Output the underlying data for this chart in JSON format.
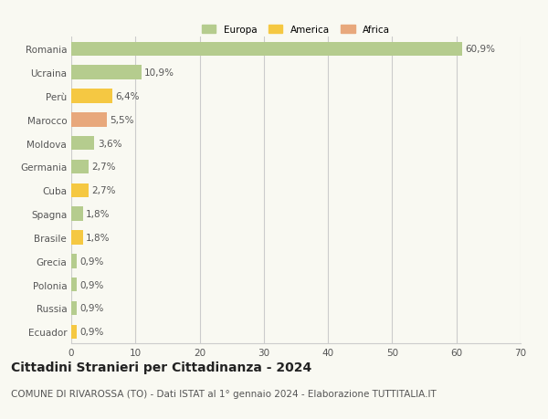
{
  "categories": [
    "Romania",
    "Ucraina",
    "Perù",
    "Marocco",
    "Moldova",
    "Germania",
    "Cuba",
    "Spagna",
    "Brasile",
    "Grecia",
    "Polonia",
    "Russia",
    "Ecuador"
  ],
  "values": [
    60.9,
    10.9,
    6.4,
    5.5,
    3.6,
    2.7,
    2.7,
    1.8,
    1.8,
    0.9,
    0.9,
    0.9,
    0.9
  ],
  "labels": [
    "60,9%",
    "10,9%",
    "6,4%",
    "5,5%",
    "3,6%",
    "2,7%",
    "2,7%",
    "1,8%",
    "1,8%",
    "0,9%",
    "0,9%",
    "0,9%",
    "0,9%"
  ],
  "continents": [
    "Europa",
    "Europa",
    "America",
    "Africa",
    "Europa",
    "Europa",
    "America",
    "Europa",
    "America",
    "Europa",
    "Europa",
    "Europa",
    "America"
  ],
  "colors": {
    "Europa": "#b5cc8e",
    "America": "#f5c842",
    "Africa": "#e8a87c"
  },
  "legend_labels": [
    "Europa",
    "America",
    "Africa"
  ],
  "legend_colors": [
    "#b5cc8e",
    "#f5c842",
    "#e8a87c"
  ],
  "xlim": [
    0,
    70
  ],
  "xticks": [
    0,
    10,
    20,
    30,
    40,
    50,
    60,
    70
  ],
  "title": "Cittadini Stranieri per Cittadinanza - 2024",
  "subtitle": "COMUNE DI RIVAROSSA (TO) - Dati ISTAT al 1° gennaio 2024 - Elaborazione TUTTITALIA.IT",
  "background_color": "#f9f9f2",
  "grid_color": "#cccccc",
  "bar_height": 0.6,
  "label_fontsize": 7.5,
  "tick_fontsize": 7.5,
  "title_fontsize": 10,
  "subtitle_fontsize": 7.5
}
